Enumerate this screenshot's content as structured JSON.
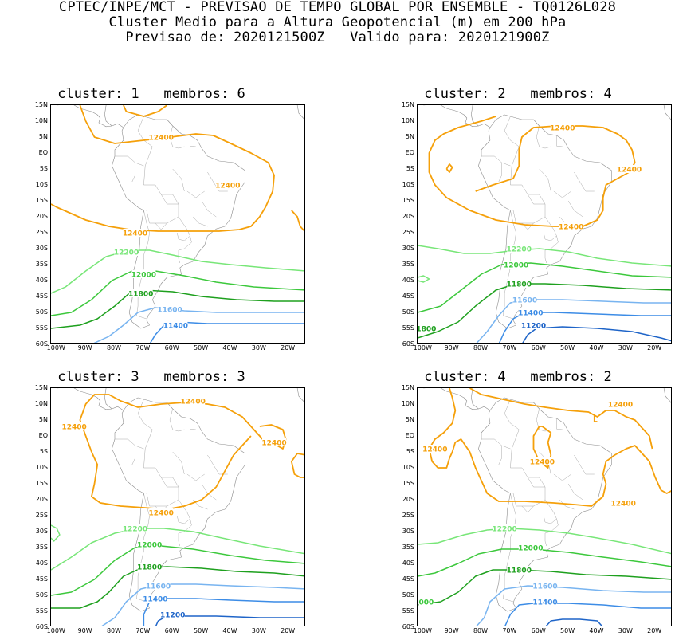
{
  "header": {
    "line1": "CPTEC/INPE/MCT - PREVISAO DE TEMPO GLOBAL POR ENSEMBLE - TQ0126L028",
    "line2": "Cluster Medio para a Altura Geopotencial (m) em 200 hPa",
    "line3": "Previsao de: 2020121500Z   Valido para: 2020121900Z"
  },
  "axes": {
    "lat_labels": [
      "15N",
      "10N",
      "5N",
      "EQ",
      "5S",
      "10S",
      "15S",
      "20S",
      "25S",
      "30S",
      "35S",
      "40S",
      "45S",
      "50S",
      "55S",
      "60S"
    ],
    "lon_labels": [
      "100W",
      "90W",
      "80W",
      "70W",
      "60W",
      "50W",
      "40W",
      "30W",
      "20W"
    ]
  },
  "colors": {
    "c12400": "#f5a00a",
    "c12200": "#78e678",
    "c12000": "#3cc83c",
    "c11800": "#1ea01e",
    "c11600": "#78b4f0",
    "c11400": "#3c8ce6",
    "c11200": "#1e64c8",
    "land": "#8c8c8c"
  },
  "panels": [
    {
      "title": "cluster: 1   membros: 6",
      "labels": [
        {
          "text": "12400",
          "lon": -64,
          "lat": 5
        },
        {
          "text": "12400",
          "lon": -41,
          "lat": -10
        },
        {
          "text": "12400",
          "lon": -73,
          "lat": -25
        },
        {
          "text": "12200",
          "lon": -76,
          "lat": -31
        },
        {
          "text": "12000",
          "lon": -70,
          "lat": -38
        },
        {
          "text": "11800",
          "lon": -71,
          "lat": -44
        },
        {
          "text": "11600",
          "lon": -61,
          "lat": -49
        },
        {
          "text": "11400",
          "lon": -59,
          "lat": -54
        }
      ]
    },
    {
      "title": "cluster: 2   membros: 4",
      "labels": [
        {
          "text": "12400",
          "lon": -52,
          "lat": 8
        },
        {
          "text": "12400",
          "lon": -29,
          "lat": -5
        },
        {
          "text": "12400",
          "lon": -49,
          "lat": -23
        },
        {
          "text": "12200",
          "lon": -67,
          "lat": -30
        },
        {
          "text": "12000",
          "lon": -68,
          "lat": -35
        },
        {
          "text": "11800",
          "lon": -67,
          "lat": -41
        },
        {
          "text": "11600",
          "lon": -65,
          "lat": -46
        },
        {
          "text": "11400",
          "lon": -63,
          "lat": -50
        },
        {
          "text": "11200",
          "lon": -62,
          "lat": -54
        },
        {
          "text": "1800",
          "lon": -99,
          "lat": -55
        }
      ]
    },
    {
      "title": "cluster: 3   membros: 3",
      "labels": [
        {
          "text": "12400",
          "lon": -53,
          "lat": 11
        },
        {
          "text": "12400",
          "lon": -94,
          "lat": 3
        },
        {
          "text": "12400",
          "lon": -25,
          "lat": -2
        },
        {
          "text": "12400",
          "lon": -64,
          "lat": -24
        },
        {
          "text": "12200",
          "lon": -73,
          "lat": -29
        },
        {
          "text": "12000",
          "lon": -68,
          "lat": -34
        },
        {
          "text": "11800",
          "lon": -68,
          "lat": -41
        },
        {
          "text": "11600",
          "lon": -65,
          "lat": -47
        },
        {
          "text": "11400",
          "lon": -66,
          "lat": -51
        },
        {
          "text": "11200",
          "lon": -60,
          "lat": -56
        }
      ]
    },
    {
      "title": "cluster: 4   membros: 2",
      "labels": [
        {
          "text": "12400",
          "lon": -32,
          "lat": 10
        },
        {
          "text": "12400",
          "lon": -96,
          "lat": -4
        },
        {
          "text": "12400",
          "lon": -59,
          "lat": -8
        },
        {
          "text": "12400",
          "lon": -31,
          "lat": -21
        },
        {
          "text": "12200",
          "lon": -72,
          "lat": -29
        },
        {
          "text": "12000",
          "lon": -63,
          "lat": -35
        },
        {
          "text": "11800",
          "lon": -67,
          "lat": -42
        },
        {
          "text": "11600",
          "lon": -58,
          "lat": -47
        },
        {
          "text": "11400",
          "lon": -58,
          "lat": -52
        },
        {
          "text": "000",
          "lon": -99,
          "lat": -52
        }
      ]
    }
  ]
}
